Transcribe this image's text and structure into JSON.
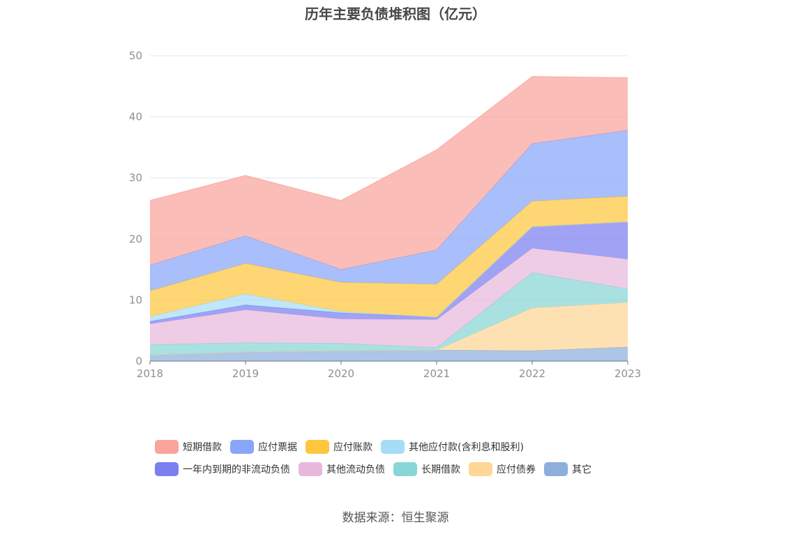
{
  "source_text": "数据来源：恒生聚源",
  "chart_data": {
    "type": "area",
    "stacked": true,
    "title": "历年主要负债堆积图（亿元）",
    "xlabel": "",
    "ylabel": "",
    "x": [
      "2018",
      "2019",
      "2020",
      "2021",
      "2022",
      "2023"
    ],
    "ylim": [
      0,
      50
    ],
    "yticks": [
      "0",
      "10",
      "20",
      "30",
      "40",
      "50"
    ],
    "grid": true,
    "legend_position": "bottom",
    "series": [
      {
        "name": "其它",
        "color": "#8eaedc",
        "values": [
          1.0,
          1.5,
          1.7,
          1.8,
          1.7,
          2.3
        ]
      },
      {
        "name": "应付债券",
        "color": "#fed696",
        "values": [
          0,
          0,
          0,
          0,
          7.0,
          7.3
        ]
      },
      {
        "name": "长期借款",
        "color": "#88d6d6",
        "values": [
          1.7,
          1.5,
          1.2,
          0.4,
          5.8,
          2.2
        ]
      },
      {
        "name": "其他流动负债",
        "color": "#e8b8dc",
        "values": [
          3.4,
          5.4,
          4.0,
          4.6,
          4.0,
          4.9
        ]
      },
      {
        "name": "一年内到期的非流动负债",
        "color": "#7b7ff0",
        "values": [
          0.4,
          0.8,
          1.0,
          0.4,
          3.5,
          6.1
        ]
      },
      {
        "name": "其他应付款(含利息和股利)",
        "color": "#a6ddf6",
        "values": [
          0.8,
          1.8,
          0.2,
          0,
          0,
          0
        ]
      },
      {
        "name": "应付账款",
        "color": "#fec63e",
        "values": [
          4.2,
          5.0,
          4.8,
          5.4,
          4.2,
          4.2
        ]
      },
      {
        "name": "应付票据",
        "color": "#88a6fa",
        "values": [
          4.2,
          4.5,
          2.1,
          5.6,
          9.4,
          10.8
        ]
      },
      {
        "name": "短期借款",
        "color": "#f9a49b",
        "values": [
          10.6,
          9.9,
          11.3,
          16.4,
          11.0,
          8.6
        ]
      }
    ],
    "legend_order": [
      "短期借款",
      "应付票据",
      "应付账款",
      "其他应付款(含利息和股利)",
      "一年内到期的非流动负债",
      "其他流动负债",
      "长期借款",
      "应付债券",
      "其它"
    ]
  }
}
